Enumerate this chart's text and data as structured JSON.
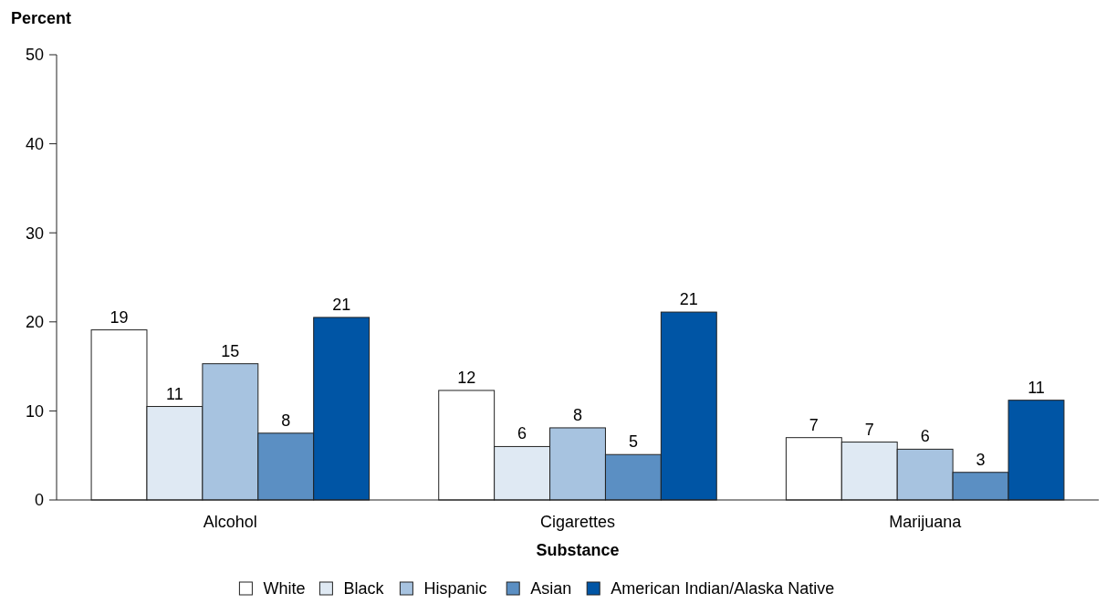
{
  "chart_data": {
    "type": "bar",
    "ylabel": "Percent",
    "xlabel": "Substance",
    "categories": [
      "Alcohol",
      "Cigarettes",
      "Marijuana"
    ],
    "ylim": [
      0,
      50
    ],
    "yticks": [
      0,
      10,
      20,
      30,
      40,
      50
    ],
    "grid": false,
    "legend": "bottom",
    "series": [
      {
        "name": "White",
        "color": "#ffffff",
        "values": [
          19.1,
          12.3,
          7.0
        ],
        "value_labels": [
          "19",
          "12",
          "7"
        ]
      },
      {
        "name": "Black",
        "color": "#dfe9f3",
        "values": [
          10.5,
          6.0,
          6.5
        ],
        "value_labels": [
          "11",
          "6",
          "7"
        ]
      },
      {
        "name": "Hispanic",
        "color": "#a7c3e0",
        "values": [
          15.3,
          8.1,
          5.7
        ],
        "value_labels": [
          "15",
          "8",
          "6"
        ]
      },
      {
        "name": "Asian",
        "color": "#5b8fc3",
        "values": [
          7.5,
          5.1,
          3.1
        ],
        "value_labels": [
          "8",
          "5",
          "3"
        ]
      },
      {
        "name": "American Indian/Alaska Native",
        "color": "#0055a5",
        "values": [
          20.5,
          21.1,
          11.2
        ],
        "value_labels": [
          "21",
          "21",
          "11"
        ]
      }
    ]
  }
}
